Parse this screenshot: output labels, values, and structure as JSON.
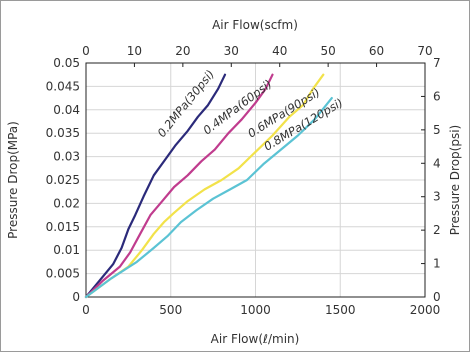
{
  "chart_data": {
    "type": "line",
    "title": "",
    "xlabel": "Air Flow(ℓ/min)",
    "ylabel": "Pressure Drop(MPa)",
    "x2label": "Air Flow(scfm)",
    "y2label": "Pressure Drop(psi)",
    "xlim": [
      0,
      2000
    ],
    "ylim": [
      0,
      0.05
    ],
    "x2lim": [
      0,
      70
    ],
    "y2lim": [
      0,
      7
    ],
    "x_ticks": [
      "0",
      "500",
      "1000",
      "1500",
      "2000"
    ],
    "y_ticks": [
      "0",
      "0.005",
      "0.01",
      "0.015",
      "0.02",
      "0.025",
      "0.03",
      "0.035",
      "0.04",
      "0.045",
      "0.05"
    ],
    "x2_ticks": [
      "0",
      "10",
      "20",
      "30",
      "40",
      "50",
      "60",
      "70"
    ],
    "y2_ticks": [
      "0",
      "1",
      "2",
      "3",
      "4",
      "5",
      "6",
      "7"
    ],
    "grid": true,
    "series": [
      {
        "name": "0.2MPa(30psi)",
        "color": "#2b2a7a",
        "x": [
          0,
          80,
          160,
          210,
          250,
          290,
          340,
          400,
          470,
          530,
          600,
          660,
          720,
          780,
          820
        ],
        "y": [
          0,
          0.0035,
          0.007,
          0.0105,
          0.0145,
          0.0175,
          0.0215,
          0.026,
          0.0295,
          0.0325,
          0.0355,
          0.0385,
          0.041,
          0.0445,
          0.0475
        ]
      },
      {
        "name": "0.4MPa(60psi)",
        "color": "#c03c8e",
        "x": [
          0,
          100,
          200,
          260,
          320,
          380,
          450,
          520,
          600,
          680,
          760,
          840,
          920,
          1000,
          1060,
          1100
        ],
        "y": [
          0,
          0.0035,
          0.0065,
          0.0095,
          0.0135,
          0.0175,
          0.0205,
          0.0235,
          0.026,
          0.029,
          0.0315,
          0.035,
          0.038,
          0.0415,
          0.0445,
          0.0475
        ]
      },
      {
        "name": "0.6MPa(90psi)",
        "color": "#f2e24a",
        "x": [
          0,
          150,
          250,
          330,
          400,
          460,
          520,
          600,
          700,
          800,
          900,
          1000,
          1100,
          1200,
          1280,
          1340,
          1400
        ],
        "y": [
          0,
          0.004,
          0.0065,
          0.01,
          0.0135,
          0.016,
          0.018,
          0.0205,
          0.023,
          0.025,
          0.0275,
          0.031,
          0.0345,
          0.0385,
          0.041,
          0.0445,
          0.0475
        ]
      },
      {
        "name": "0.8MPa(120psi)",
        "color": "#5bc3d4",
        "x": [
          0,
          150,
          300,
          400,
          480,
          560,
          650,
          750,
          850,
          950,
          1050,
          1150,
          1250,
          1350,
          1450
        ],
        "y": [
          0,
          0.004,
          0.0075,
          0.0105,
          0.013,
          0.016,
          0.0185,
          0.021,
          0.023,
          0.025,
          0.0285,
          0.0315,
          0.0345,
          0.038,
          0.0425
        ]
      }
    ]
  }
}
